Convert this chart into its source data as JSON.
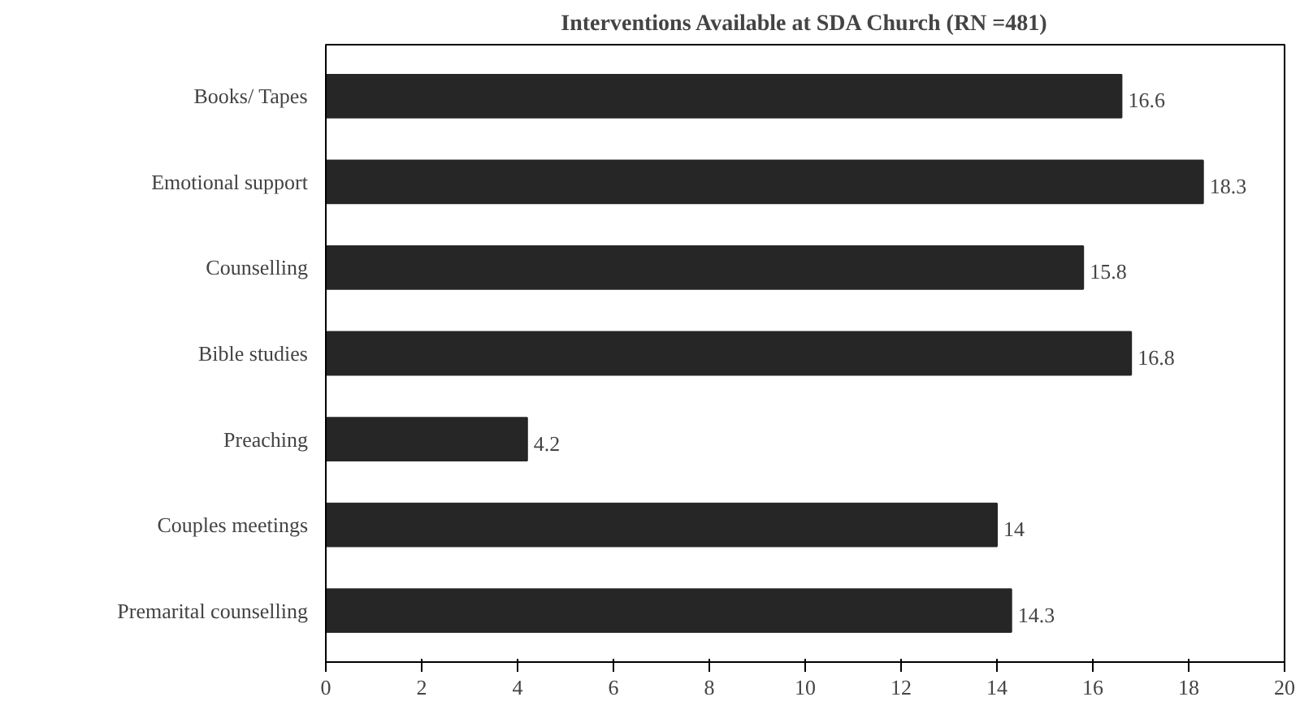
{
  "chart_data": {
    "type": "bar",
    "orientation": "horizontal",
    "title": "Interventions Available at SDA Church (RN =481)",
    "categories": [
      "Books/ Tapes",
      "Emotional support",
      "Counselling",
      "Bible studies",
      "Preaching",
      "Couples meetings",
      "Premarital counselling"
    ],
    "values": [
      16.6,
      18.3,
      15.8,
      16.8,
      4.2,
      14,
      14.3
    ],
    "color": "#262626",
    "xlim": [
      0,
      20
    ],
    "xticks": [
      0,
      2,
      4,
      6,
      8,
      10,
      12,
      14,
      16,
      18,
      20
    ],
    "data_labels": true
  }
}
